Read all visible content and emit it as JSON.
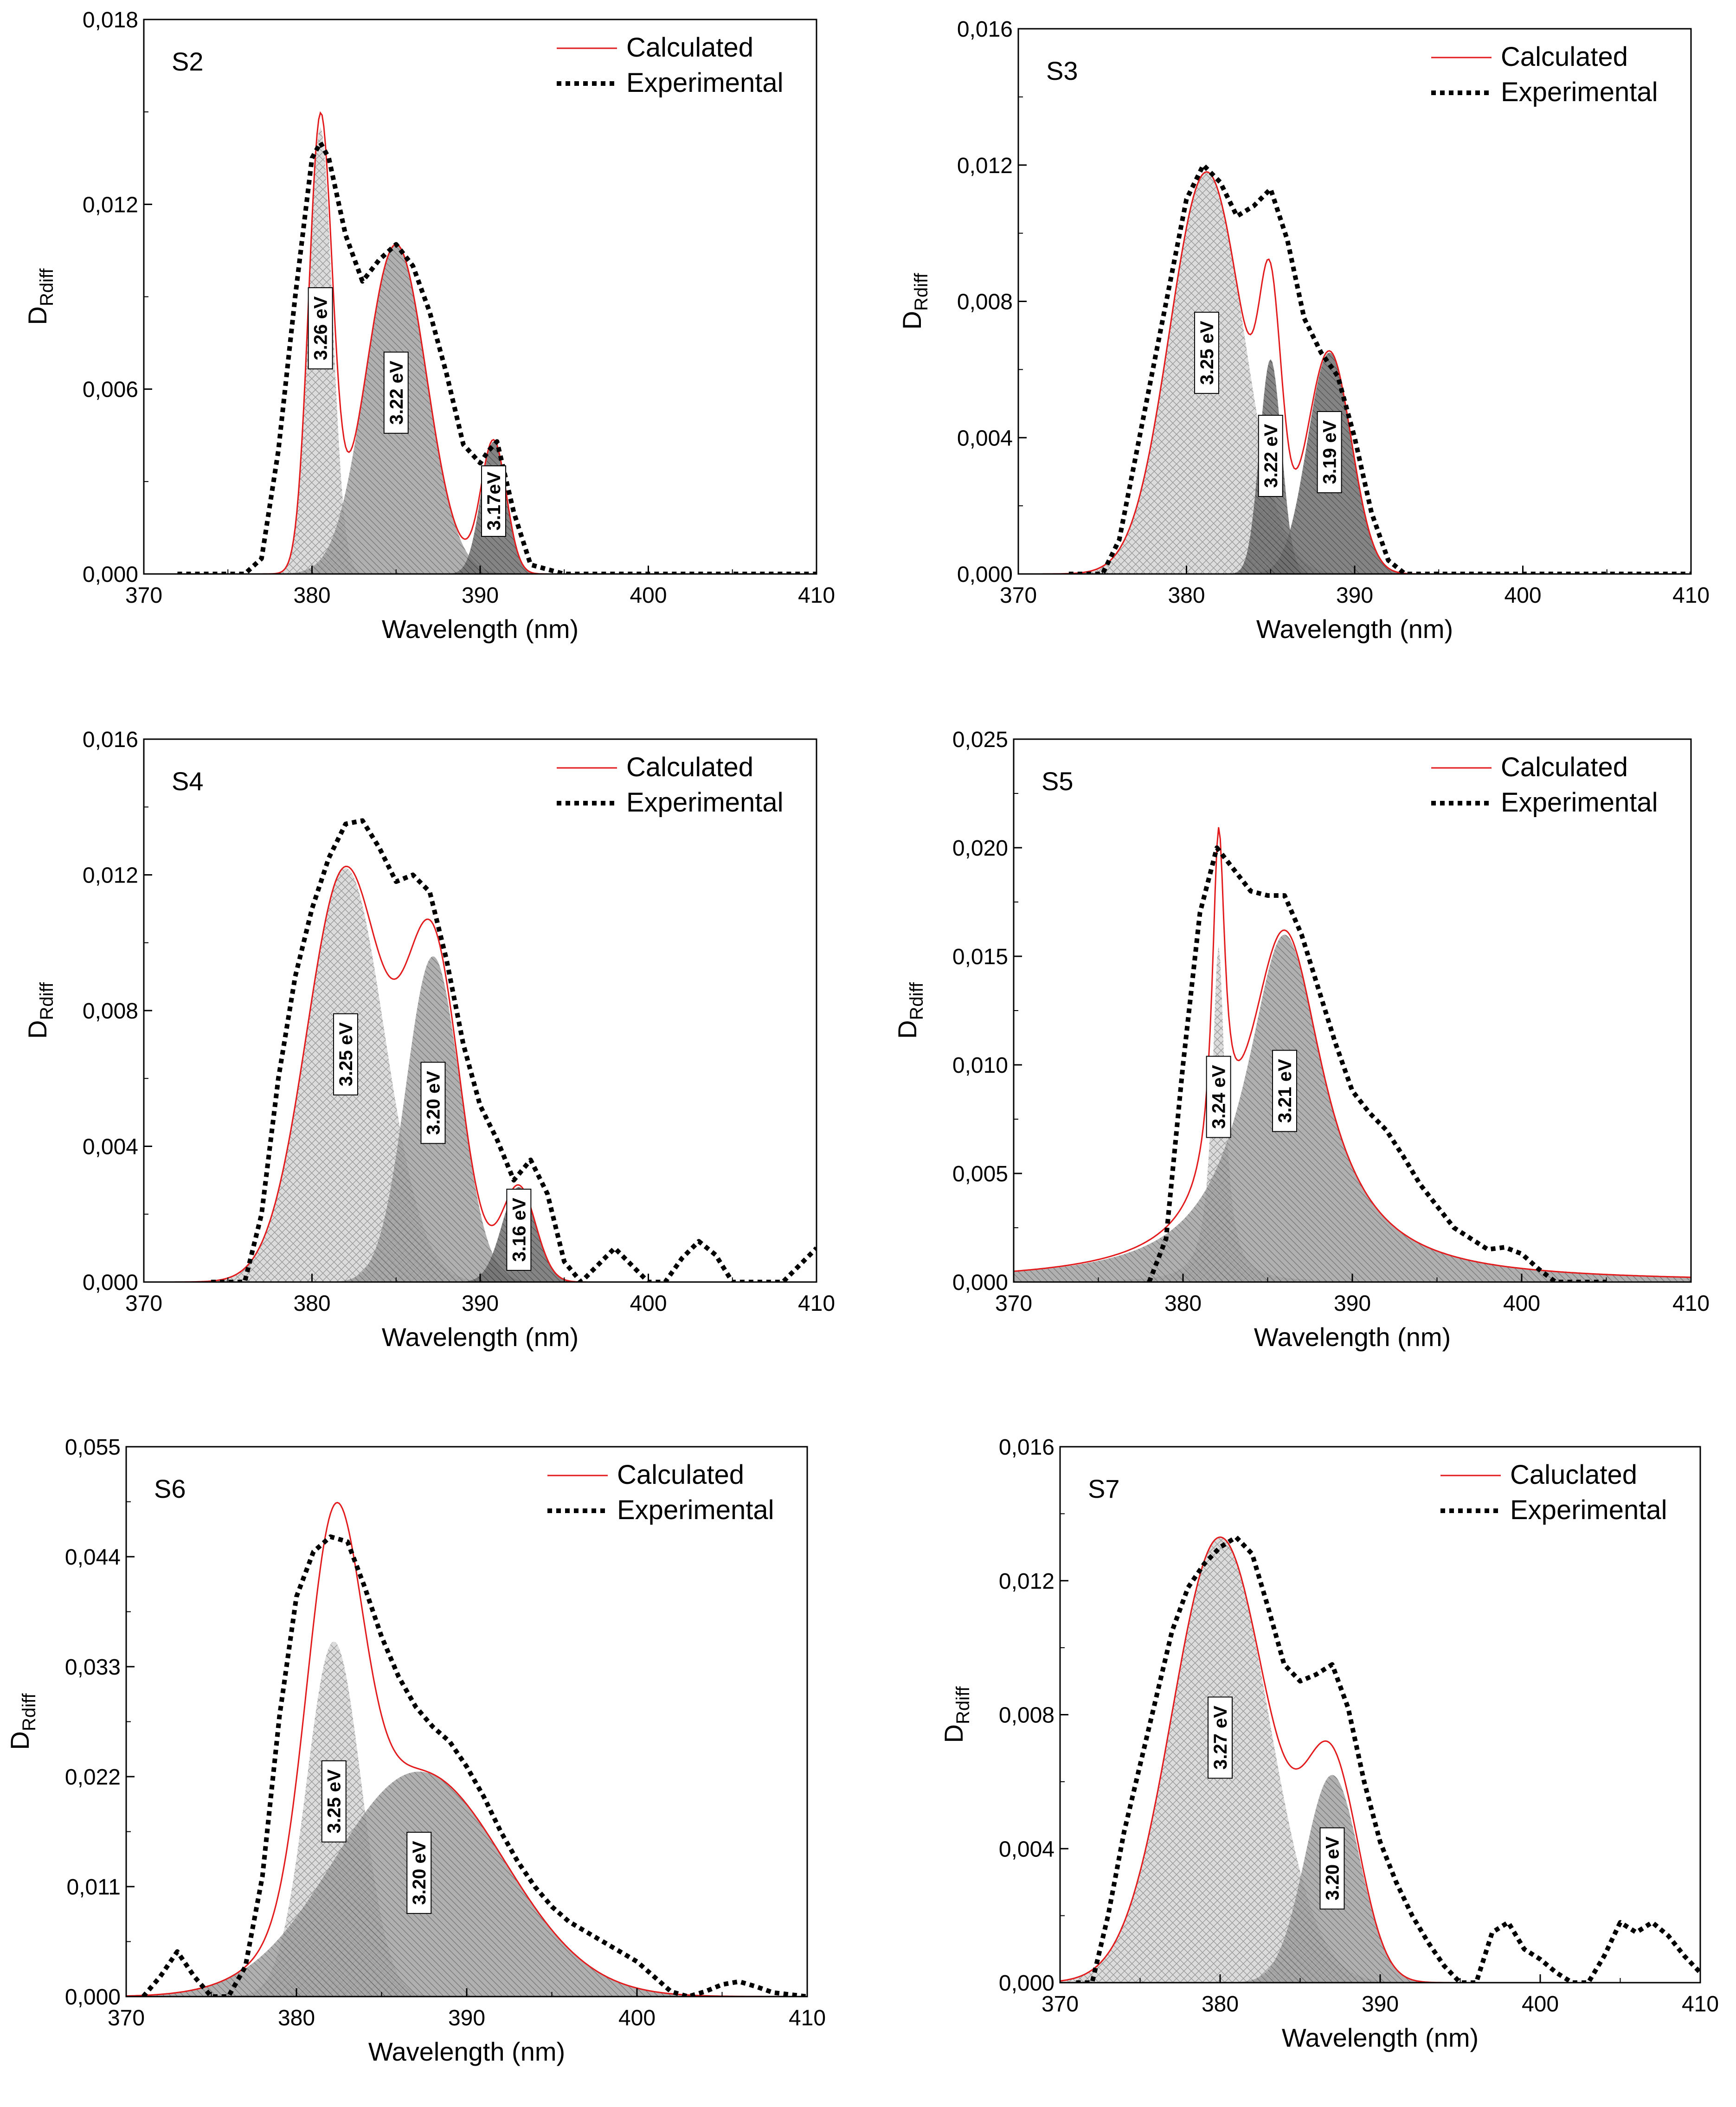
{
  "colors": {
    "calculated": "#e31a1c",
    "experimental": "#000000",
    "peak_light": "#d4d4d4",
    "peak_mid": "#9a9a9a",
    "peak_dark": "#6a6a6a"
  },
  "chart_data": [
    {
      "type": "line",
      "panel": "S2",
      "xlabel": "Wavelength (nm)",
      "ylabel": "D",
      "ylabel_sub": "Rdiff",
      "xlim": [
        370,
        410
      ],
      "ylim": [
        0,
        0.018
      ],
      "xticks": [
        370,
        380,
        390,
        400,
        410
      ],
      "yticks": [
        0,
        0.006,
        0.012,
        0.018
      ],
      "ytick_labels": [
        "0,000",
        "0,006",
        "0,012",
        "0,018"
      ],
      "legend": [
        "Calculated",
        "Experimental"
      ],
      "peaks": [
        {
          "label": "3.26 eV",
          "center": 380.5,
          "height": 0.0145,
          "width": 0.7,
          "shade": "light"
        },
        {
          "label": "3.22 eV",
          "center": 385.0,
          "height": 0.0107,
          "width": 1.8,
          "shade": "mid"
        },
        {
          "label": "3.17eV",
          "center": 390.8,
          "height": 0.0043,
          "width": 0.75,
          "shade": "dark"
        }
      ],
      "experimental": {
        "x": [
          372,
          374,
          376,
          377,
          378,
          379,
          380,
          380.5,
          381,
          382,
          383,
          384,
          385,
          386,
          387,
          388,
          389,
          390,
          390.5,
          391,
          392,
          393,
          395,
          400,
          406,
          410
        ],
        "y": [
          0,
          0,
          0,
          0.0005,
          0.004,
          0.009,
          0.0135,
          0.014,
          0.0135,
          0.011,
          0.0095,
          0.0102,
          0.0107,
          0.01,
          0.0085,
          0.0065,
          0.0042,
          0.0036,
          0.004,
          0.0043,
          0.002,
          0.0003,
          0,
          0,
          0,
          0
        ]
      }
    },
    {
      "type": "line",
      "panel": "S3",
      "xlabel": "Wavelength (nm)",
      "ylabel": "D",
      "ylabel_sub": "Rdiff",
      "xlim": [
        370,
        410
      ],
      "ylim": [
        0,
        0.016
      ],
      "xticks": [
        370,
        380,
        390,
        400,
        410
      ],
      "yticks": [
        0,
        0.004,
        0.008,
        0.012,
        0.016
      ],
      "ytick_labels": [
        "0,000",
        "0,004",
        "0,008",
        "0,012",
        "0,016"
      ],
      "legend": [
        "Calculated",
        "Experimental"
      ],
      "peaks": [
        {
          "label": "3.25 eV",
          "center": 381.2,
          "height": 0.0118,
          "width": 2.2,
          "shade": "light"
        },
        {
          "label": "3.22 eV",
          "center": 385.0,
          "height": 0.0063,
          "width": 0.65,
          "shade": "dark"
        },
        {
          "label": "3.19 eV",
          "center": 388.5,
          "height": 0.0065,
          "width": 1.3,
          "shade": "dark"
        }
      ],
      "experimental": {
        "x": [
          373,
          375,
          376,
          377,
          378,
          379,
          380,
          381,
          382,
          383,
          384,
          385,
          386,
          387,
          388,
          389,
          390,
          391,
          392,
          393,
          395,
          399,
          404,
          410
        ],
        "y": [
          0,
          0,
          0.001,
          0.0035,
          0.006,
          0.0085,
          0.011,
          0.012,
          0.0115,
          0.0105,
          0.0108,
          0.0113,
          0.0098,
          0.0075,
          0.0065,
          0.0058,
          0.004,
          0.0018,
          0.0004,
          0,
          0,
          0,
          0,
          0
        ]
      }
    },
    {
      "type": "line",
      "panel": "S4",
      "xlabel": "Wavelength (nm)",
      "ylabel": "D",
      "ylabel_sub": "Rdiff",
      "xlim": [
        370,
        410
      ],
      "ylim": [
        0,
        0.016
      ],
      "xticks": [
        370,
        380,
        390,
        400,
        410
      ],
      "yticks": [
        0,
        0.004,
        0.008,
        0.012,
        0.016
      ],
      "ytick_labels": [
        "0,000",
        "0,004",
        "0,008",
        "0,012",
        "0,016"
      ],
      "legend": [
        "Calculated",
        "Experimental"
      ],
      "peaks": [
        {
          "label": "3.25 eV",
          "center": 382.0,
          "height": 0.0122,
          "width": 2.3,
          "shade": "light"
        },
        {
          "label": "3.20 eV",
          "center": 387.2,
          "height": 0.0096,
          "width": 1.6,
          "shade": "mid"
        },
        {
          "label": "3.16 eV",
          "center": 392.3,
          "height": 0.0028,
          "width": 1.0,
          "shade": "dark"
        }
      ],
      "experimental": {
        "x": [
          374,
          376,
          377,
          378,
          379,
          380,
          381,
          382,
          383,
          384,
          385,
          386,
          387,
          388,
          389,
          390,
          391,
          392,
          393,
          394,
          395,
          396,
          397,
          398,
          399,
          400,
          401,
          402,
          403,
          404,
          405,
          406,
          407,
          408,
          409,
          410
        ],
        "y": [
          0,
          0,
          0.002,
          0.006,
          0.009,
          0.011,
          0.0125,
          0.0135,
          0.0136,
          0.0128,
          0.0118,
          0.012,
          0.0115,
          0.0095,
          0.007,
          0.0052,
          0.0042,
          0.003,
          0.0036,
          0.0026,
          0.0006,
          0,
          0.0005,
          0.001,
          0.0005,
          0,
          0,
          0.0007,
          0.0012,
          0.0008,
          0,
          0,
          0,
          0,
          0.0005,
          0.001
        ]
      }
    },
    {
      "type": "line",
      "panel": "S5",
      "xlabel": "Wavelength (nm)",
      "ylabel": "D",
      "ylabel_sub": "Rdiff",
      "xlim": [
        370,
        410
      ],
      "ylim": [
        0,
        0.025
      ],
      "xticks": [
        370,
        380,
        390,
        400,
        410
      ],
      "yticks": [
        0,
        0.005,
        0.01,
        0.015,
        0.02,
        0.025
      ],
      "ytick_labels": [
        "0,000",
        "0,005",
        "0,010",
        "0,015",
        "0,020",
        "0,025"
      ],
      "legend": [
        "Calculated",
        "Experimental"
      ],
      "peaks": [
        {
          "label": "3.24 eV",
          "center": 382.1,
          "height": 0.0155,
          "width": 0.45,
          "lorentz": true,
          "shade": "light"
        },
        {
          "label": "3.21 eV",
          "center": 386.0,
          "height": 0.016,
          "width": 2.8,
          "lorentz": true,
          "shade": "mid"
        }
      ],
      "experimental": {
        "x": [
          378,
          379,
          380,
          381,
          382,
          383,
          384,
          385,
          386,
          387,
          388,
          389,
          390,
          391,
          392,
          393,
          394,
          395,
          396,
          397,
          398,
          399,
          400,
          401,
          402,
          403,
          405
        ],
        "y": [
          0,
          0.002,
          0.01,
          0.017,
          0.02,
          0.019,
          0.018,
          0.0178,
          0.0178,
          0.016,
          0.0135,
          0.011,
          0.0088,
          0.0078,
          0.007,
          0.0058,
          0.0045,
          0.0035,
          0.0025,
          0.002,
          0.0015,
          0.0016,
          0.0013,
          0.0006,
          0,
          0,
          0
        ]
      }
    },
    {
      "type": "line",
      "panel": "S6",
      "xlabel": "Wavelength (nm)",
      "ylabel": "D",
      "ylabel_sub": "Rdiff",
      "xlim": [
        370,
        410
      ],
      "ylim": [
        0,
        0.055
      ],
      "xticks": [
        370,
        380,
        390,
        400,
        410
      ],
      "yticks": [
        0,
        0.011,
        0.022,
        0.033,
        0.044,
        0.055
      ],
      "ytick_labels": [
        "0,000",
        "0,011",
        "0,022",
        "0,033",
        "0,044",
        "0,055"
      ],
      "legend": [
        "Calculated",
        "Experimental"
      ],
      "peaks": [
        {
          "label": "3.25 eV",
          "center": 382.2,
          "height": 0.0355,
          "width": 1.6,
          "shade": "light"
        },
        {
          "label": "3.20 eV",
          "center": 387.2,
          "height": 0.0225,
          "width": 5.0,
          "shade": "mid"
        }
      ],
      "experimental": {
        "x": [
          371,
          372,
          373,
          374,
          375,
          376,
          377,
          378,
          379,
          380,
          381,
          382,
          383,
          384,
          385,
          386,
          387,
          388,
          389,
          390,
          391,
          392,
          393,
          394,
          395,
          396,
          397,
          398,
          399,
          400,
          401,
          402,
          403,
          404,
          405,
          406,
          407,
          408,
          410
        ],
        "y": [
          0,
          0.002,
          0.0045,
          0.002,
          0,
          0,
          0.003,
          0.012,
          0.028,
          0.04,
          0.0445,
          0.046,
          0.0455,
          0.041,
          0.036,
          0.032,
          0.029,
          0.027,
          0.0255,
          0.023,
          0.02,
          0.0165,
          0.0135,
          0.011,
          0.009,
          0.0075,
          0.0065,
          0.0055,
          0.0045,
          0.0035,
          0.002,
          0.0005,
          0,
          0.0005,
          0.0012,
          0.0015,
          0.001,
          0.0004,
          0
        ]
      }
    },
    {
      "type": "line",
      "panel": "S7",
      "xlabel": "Wavelength (nm)",
      "ylabel": "D",
      "ylabel_sub": "Rdiff",
      "xlim": [
        370,
        410
      ],
      "ylim": [
        0,
        0.016
      ],
      "xticks": [
        370,
        380,
        390,
        400,
        410
      ],
      "yticks": [
        0,
        0.004,
        0.008,
        0.012,
        0.016
      ],
      "ytick_labels": [
        "0,000",
        "0,004",
        "0,008",
        "0,012",
        "0,016"
      ],
      "legend": [
        "Caluclated",
        "Experimental"
      ],
      "peaks": [
        {
          "label": "3.27 eV",
          "center": 380.0,
          "height": 0.0133,
          "width": 3.0,
          "shade": "light"
        },
        {
          "label": "3.20 eV",
          "center": 387.0,
          "height": 0.0062,
          "width": 1.7,
          "shade": "mid"
        }
      ],
      "experimental": {
        "x": [
          371,
          372,
          373,
          374,
          375,
          376,
          377,
          378,
          379,
          380,
          381,
          382,
          383,
          384,
          385,
          386,
          387,
          388,
          389,
          390,
          391,
          392,
          393,
          394,
          395,
          396,
          397,
          398,
          399,
          400,
          401,
          402,
          403,
          404,
          405,
          406,
          407,
          408,
          409,
          410
        ],
        "y": [
          0,
          0,
          0.002,
          0.0045,
          0.0065,
          0.0085,
          0.0105,
          0.0118,
          0.0125,
          0.013,
          0.0133,
          0.0128,
          0.0112,
          0.0095,
          0.009,
          0.0092,
          0.0095,
          0.0082,
          0.006,
          0.0042,
          0.003,
          0.002,
          0.0012,
          0.0005,
          0,
          0,
          0.0015,
          0.0018,
          0.001,
          0.0007,
          0.0003,
          0,
          0,
          0.0008,
          0.0018,
          0.0015,
          0.0018,
          0.0014,
          0.0008,
          0.0003
        ]
      }
    }
  ]
}
